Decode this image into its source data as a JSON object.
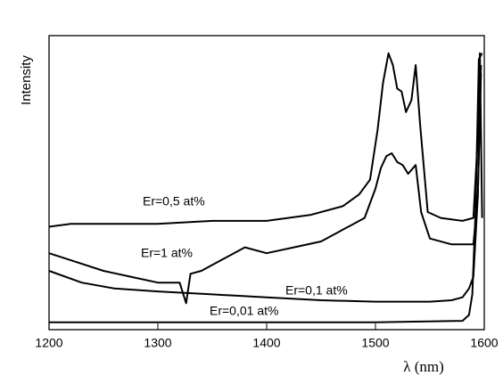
{
  "chart_data": {
    "type": "line",
    "y_label": "Intensity",
    "x_label": "λ (nm)",
    "xlim": [
      1200,
      1600
    ],
    "xticks": [
      1200,
      1300,
      1400,
      1500,
      1600
    ],
    "ylim": [
      0,
      10
    ],
    "series": [
      {
        "name": "Er=0,5 at%",
        "color": "#000000",
        "x": [
          1200,
          1220,
          1250,
          1300,
          1350,
          1400,
          1440,
          1470,
          1485,
          1495,
          1502,
          1507,
          1512,
          1516,
          1520,
          1524,
          1528,
          1533,
          1537,
          1541,
          1548,
          1560,
          1580,
          1590,
          1594,
          1596,
          1598
        ],
        "values": [
          3.5,
          3.6,
          3.6,
          3.6,
          3.7,
          3.7,
          3.9,
          4.2,
          4.6,
          5.1,
          6.8,
          8.4,
          9.4,
          9.0,
          8.2,
          8.1,
          7.4,
          7.8,
          9.0,
          7.0,
          4.0,
          3.8,
          3.7,
          3.8,
          6.5,
          9.4,
          3.8
        ]
      },
      {
        "name": "Er=1 at%",
        "color": "#000000",
        "x": [
          1200,
          1225,
          1250,
          1275,
          1300,
          1320,
          1326,
          1330,
          1340,
          1360,
          1380,
          1400,
          1425,
          1450,
          1470,
          1480,
          1490,
          1500,
          1505,
          1510,
          1515,
          1520,
          1525,
          1530,
          1537,
          1542,
          1550,
          1570,
          1590,
          1594,
          1597
        ],
        "values": [
          2.6,
          2.3,
          2.0,
          1.8,
          1.6,
          1.6,
          0.9,
          1.9,
          2.0,
          2.4,
          2.8,
          2.6,
          2.8,
          3.0,
          3.4,
          3.6,
          3.8,
          4.8,
          5.5,
          5.9,
          6.0,
          5.7,
          5.6,
          5.3,
          5.6,
          4.0,
          3.1,
          2.9,
          2.9,
          4.5,
          8.7
        ]
      },
      {
        "name": "Er=0,1 at%",
        "color": "#000000",
        "x": [
          1200,
          1230,
          1260,
          1300,
          1350,
          1400,
          1450,
          1500,
          1550,
          1570,
          1580,
          1586,
          1590,
          1594,
          1597
        ],
        "values": [
          2.0,
          1.6,
          1.4,
          1.3,
          1.2,
          1.1,
          1.0,
          0.95,
          0.95,
          1.0,
          1.1,
          1.4,
          1.8,
          4.5,
          9.0
        ]
      },
      {
        "name": "Er=0,01 at%",
        "color": "#000000",
        "x": [
          1200,
          1300,
          1400,
          1500,
          1580,
          1586,
          1589,
          1592,
          1595,
          1598
        ],
        "values": [
          0.25,
          0.25,
          0.25,
          0.25,
          0.3,
          0.5,
          1.2,
          4.0,
          9.2,
          9.4
        ]
      }
    ]
  }
}
